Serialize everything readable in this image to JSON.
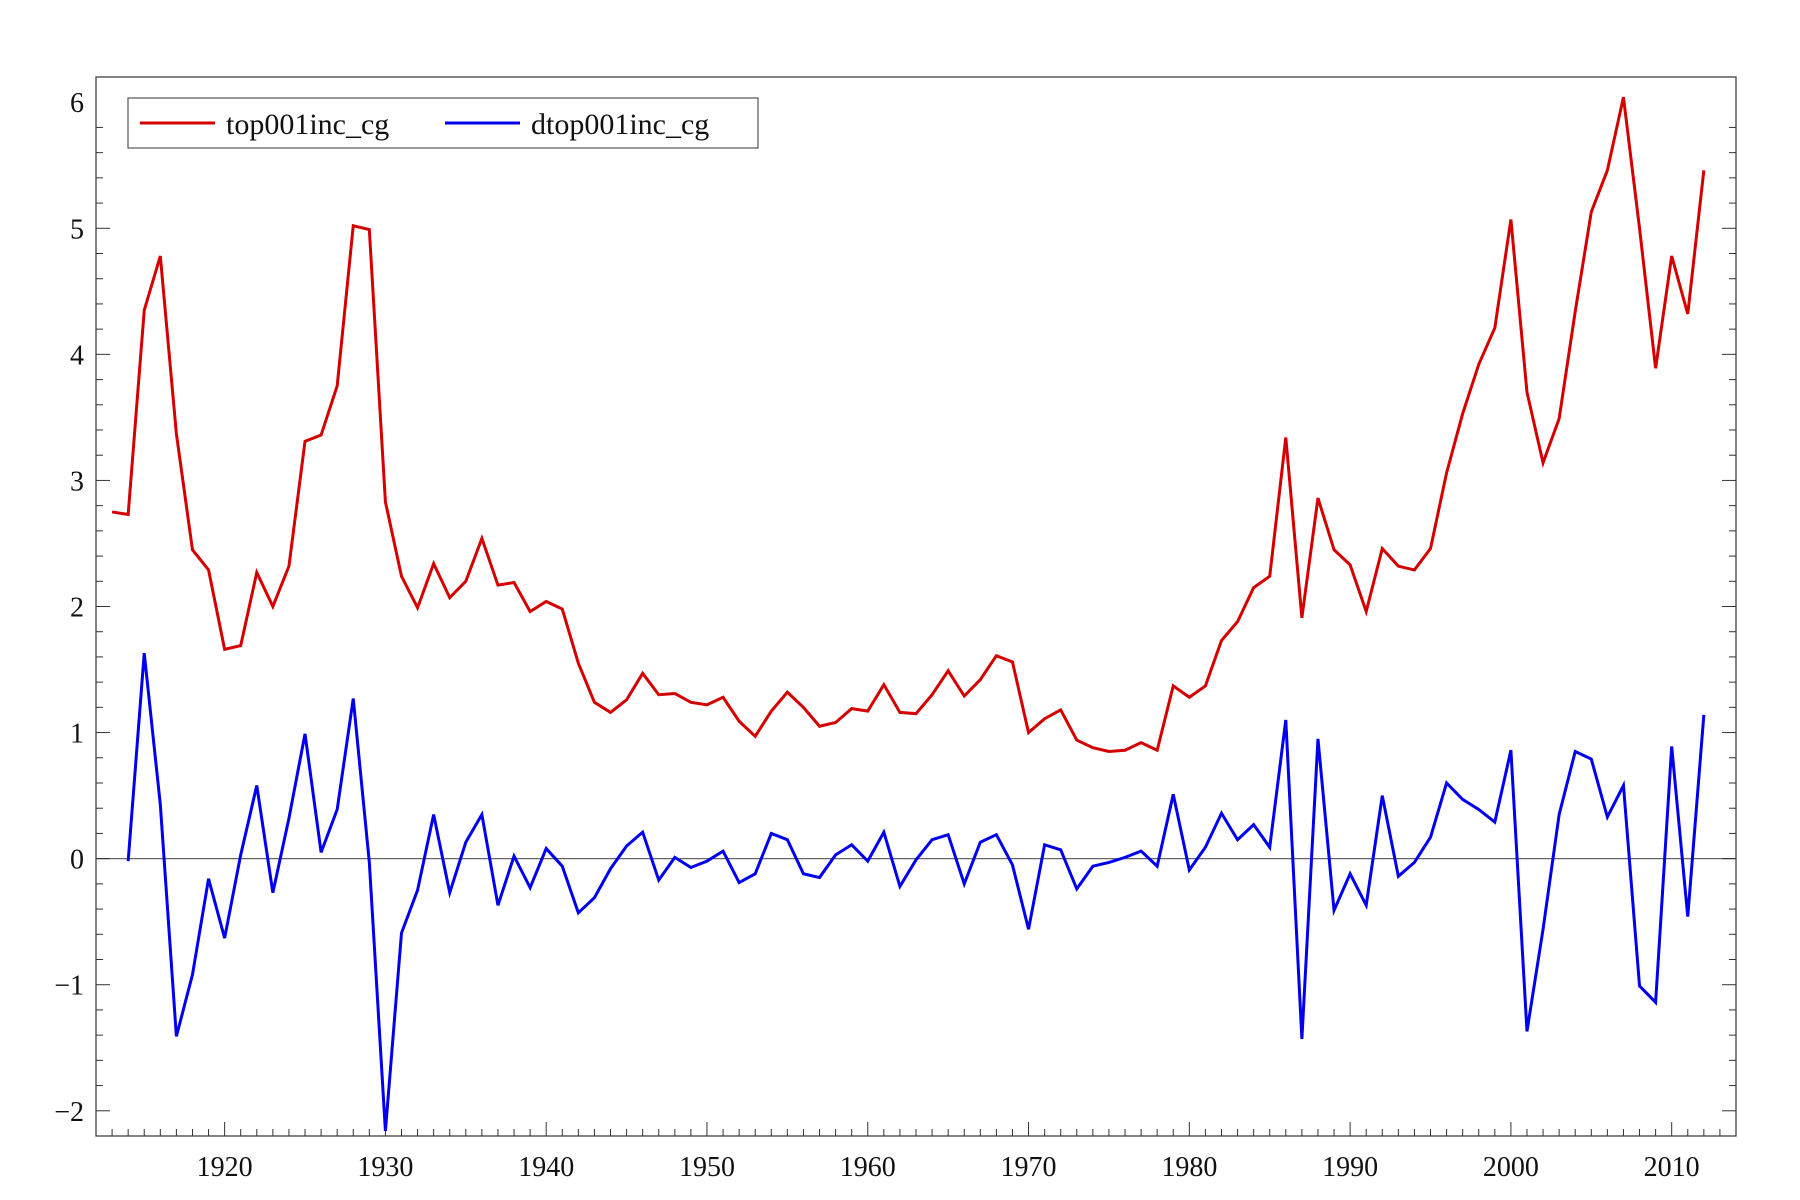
{
  "chart_data": {
    "type": "line",
    "title": "",
    "xlabel": "",
    "ylabel": "",
    "xlim": [
      1912,
      2014
    ],
    "ylim": [
      -2.2,
      6.2
    ],
    "x_ticks": [
      1920,
      1930,
      1940,
      1950,
      1960,
      1970,
      1980,
      1990,
      2000,
      2010
    ],
    "y_ticks": [
      -2,
      -1,
      0,
      1,
      2,
      3,
      4,
      5,
      6
    ],
    "y_tick_labels": [
      "−2",
      "−1",
      "0",
      "1",
      "2",
      "3",
      "4",
      "5",
      "6"
    ],
    "zero_line": true,
    "grid": false,
    "legend_position": "top-left",
    "series": [
      {
        "name": "top001inc_cg",
        "color": "#d40000",
        "x_start": 1913,
        "values": [
          2.75,
          2.73,
          4.35,
          4.78,
          3.37,
          2.45,
          2.29,
          1.66,
          1.69,
          2.27,
          2.0,
          2.32,
          3.31,
          3.36,
          3.75,
          5.02,
          4.99,
          2.83,
          2.24,
          1.99,
          2.34,
          2.07,
          2.2,
          2.54,
          2.17,
          2.19,
          1.96,
          2.04,
          1.98,
          1.55,
          1.24,
          1.16,
          1.26,
          1.47,
          1.3,
          1.31,
          1.24,
          1.22,
          1.28,
          1.09,
          0.97,
          1.17,
          1.32,
          1.2,
          1.05,
          1.08,
          1.19,
          1.17,
          1.38,
          1.16,
          1.15,
          1.3,
          1.49,
          1.29,
          1.42,
          1.61,
          1.56,
          1.0,
          1.11,
          1.18,
          0.94,
          0.88,
          0.85,
          0.86,
          0.92,
          0.86,
          1.37,
          1.28,
          1.37,
          1.73,
          1.88,
          2.15,
          2.24,
          3.34,
          1.91,
          2.86,
          2.45,
          2.33,
          1.96,
          2.46,
          2.32,
          2.29,
          2.46,
          3.06,
          3.53,
          3.92,
          4.21,
          5.07,
          3.7,
          3.14,
          3.49,
          4.34,
          5.13,
          5.46,
          6.04,
          5.0,
          3.89,
          4.78,
          4.32,
          5.46
        ]
      },
      {
        "name": "dtop001inc_cg",
        "color": "#0000ee",
        "x_start": 1914,
        "values": [
          -0.02,
          1.63,
          0.43,
          -1.41,
          -0.92,
          -0.16,
          -0.63,
          0.03,
          0.58,
          -0.27,
          0.32,
          0.99,
          0.05,
          0.39,
          1.27,
          -0.03,
          -2.16,
          -0.59,
          -0.25,
          0.35,
          -0.27,
          0.13,
          0.35,
          -0.37,
          0.02,
          -0.23,
          0.08,
          -0.06,
          -0.43,
          -0.31,
          -0.08,
          0.1,
          0.21,
          -0.17,
          0.01,
          -0.07,
          -0.02,
          0.06,
          -0.19,
          -0.12,
          0.2,
          0.15,
          -0.12,
          -0.15,
          0.03,
          0.11,
          -0.02,
          0.21,
          -0.22,
          -0.01,
          0.15,
          0.19,
          -0.2,
          0.13,
          0.19,
          -0.05,
          -0.56,
          0.11,
          0.07,
          -0.24,
          -0.06,
          -0.03,
          0.01,
          0.06,
          -0.06,
          0.51,
          -0.09,
          0.09,
          0.36,
          0.15,
          0.27,
          0.09,
          1.1,
          -1.43,
          0.95,
          -0.41,
          -0.12,
          -0.37,
          0.5,
          -0.14,
          -0.03,
          0.17,
          0.6,
          0.47,
          0.39,
          0.29,
          0.86,
          -1.37,
          -0.56,
          0.35,
          0.85,
          0.79,
          0.33,
          0.58,
          -1.01,
          -1.14,
          0.89,
          -0.46,
          1.14
        ]
      }
    ]
  }
}
